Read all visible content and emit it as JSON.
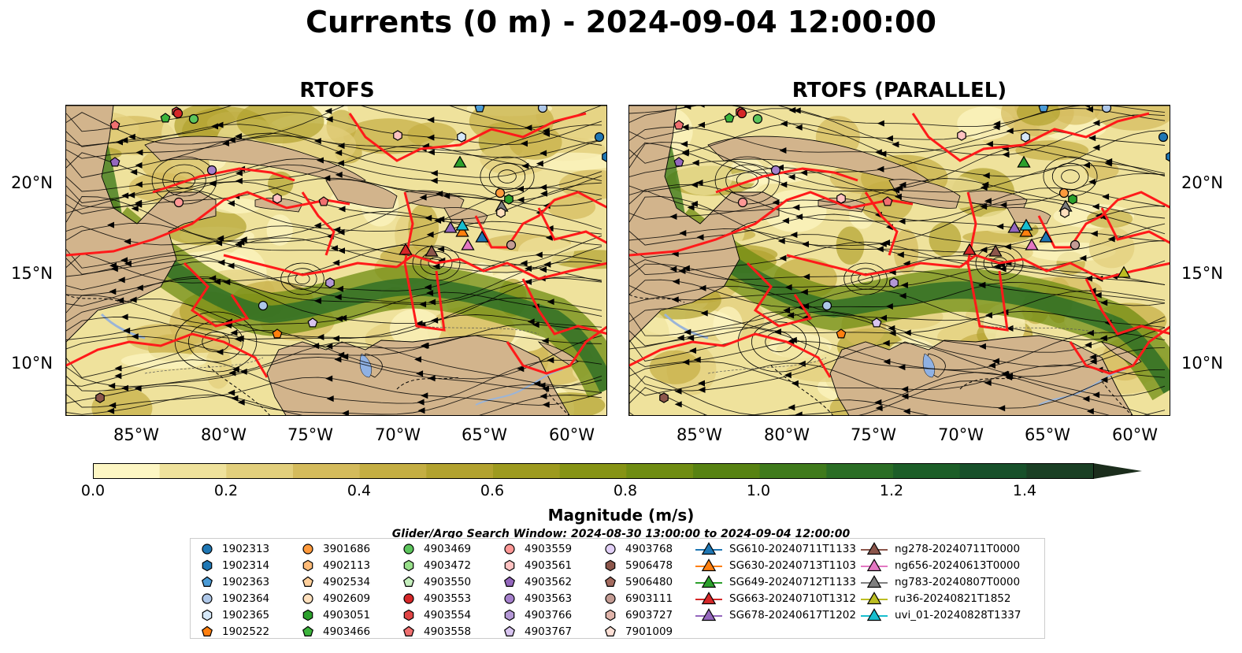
{
  "title": "Currents (0 m) - 2024-09-04 12:00:00",
  "panels": [
    {
      "title": "RTOFS"
    },
    {
      "title": "RTOFS (PARALLEL)"
    }
  ],
  "map": {
    "lat_ticks": [
      "20°N",
      "15°N",
      "10°N"
    ],
    "lon_ticks": [
      "85°W",
      "80°W",
      "75°W",
      "70°W",
      "65°W",
      "60°W"
    ],
    "extent": {
      "lon": [
        -89,
        -58
      ],
      "lat": [
        7,
        24.5
      ]
    }
  },
  "colorbar": {
    "label": "Magnitude (m/s)",
    "ticks": [
      "0.0",
      "0.2",
      "0.4",
      "0.6",
      "0.8",
      "1.0",
      "1.2",
      "1.4"
    ],
    "range": [
      0,
      1.5
    ],
    "colors": [
      "#fdf6c3",
      "#efe29c",
      "#e2cf7c",
      "#d4bb5c",
      "#c4ae43",
      "#b2a22f",
      "#9d9a1f",
      "#869315",
      "#6f8c12",
      "#578212",
      "#3f7a1c",
      "#2a6d25",
      "#1c5e28",
      "#17502a",
      "#1a3f24",
      "#1b2d1c"
    ]
  },
  "legend": {
    "title": "Glider/Argo Search Window: 2024-08-30 13:00:00 to 2024-09-04 12:00:00",
    "columns": [
      [
        {
          "label": "1902313",
          "marker": "circle",
          "color": "#1f77b4"
        },
        {
          "label": "1902314",
          "marker": "hexagon",
          "color": "#1f77b4"
        },
        {
          "label": "1902363",
          "marker": "pentagon",
          "color": "#4b9bd6"
        },
        {
          "label": "1902364",
          "marker": "circle",
          "color": "#aec7e8"
        },
        {
          "label": "1902365",
          "marker": "hexagon",
          "color": "#d6e8f8"
        },
        {
          "label": "1902522",
          "marker": "pentagon",
          "color": "#ff7f0e"
        }
      ],
      [
        {
          "label": "3901686",
          "marker": "circle",
          "color": "#ff9a3c"
        },
        {
          "label": "4902113",
          "marker": "hexagon",
          "color": "#ffbb78"
        },
        {
          "label": "4902534",
          "marker": "pentagon",
          "color": "#ffcf9a"
        },
        {
          "label": "4902609",
          "marker": "circle",
          "color": "#ffe0bd"
        },
        {
          "label": "4903051",
          "marker": "hexagon",
          "color": "#2ca02c"
        },
        {
          "label": "4903466",
          "marker": "pentagon",
          "color": "#3cb43c"
        }
      ],
      [
        {
          "label": "4903469",
          "marker": "circle",
          "color": "#5cc55c"
        },
        {
          "label": "4903472",
          "marker": "hexagon",
          "color": "#98df8a"
        },
        {
          "label": "4903550",
          "marker": "pentagon",
          "color": "#c5efbd"
        },
        {
          "label": "4903553",
          "marker": "circle",
          "color": "#d62728"
        },
        {
          "label": "4903554",
          "marker": "hexagon",
          "color": "#e04545"
        },
        {
          "label": "4903558",
          "marker": "pentagon",
          "color": "#f07070"
        }
      ],
      [
        {
          "label": "4903559",
          "marker": "circle",
          "color": "#ff9896"
        },
        {
          "label": "4903561",
          "marker": "hexagon",
          "color": "#ffc2c1"
        },
        {
          "label": "4903562",
          "marker": "pentagon",
          "color": "#9467bd"
        },
        {
          "label": "4903563",
          "marker": "circle",
          "color": "#a580cc"
        },
        {
          "label": "4903766",
          "marker": "hexagon",
          "color": "#b498d6"
        },
        {
          "label": "4903767",
          "marker": "pentagon",
          "color": "#d8c4f0"
        }
      ],
      [
        {
          "label": "4903768",
          "marker": "circle",
          "color": "#e2d0f7"
        },
        {
          "label": "5906478",
          "marker": "hexagon",
          "color": "#8c564b"
        },
        {
          "label": "5906480",
          "marker": "pentagon",
          "color": "#a46b5f"
        },
        {
          "label": "6903111",
          "marker": "circle",
          "color": "#c49c94"
        },
        {
          "label": "6903727",
          "marker": "hexagon",
          "color": "#e0b4aa"
        },
        {
          "label": "7901009",
          "marker": "pentagon",
          "color": "#fde0d6"
        }
      ],
      [
        {
          "label": "SG610-20240711T1133",
          "marker": "triangle",
          "color": "#1f77b4"
        },
        {
          "label": "SG630-20240713T1103",
          "marker": "triangle",
          "color": "#ff7f0e"
        },
        {
          "label": "SG649-20240712T1133",
          "marker": "triangle",
          "color": "#2ca02c"
        },
        {
          "label": "SG663-20240710T1312",
          "marker": "triangle",
          "color": "#d62728"
        },
        {
          "label": "SG678-20240617T1202",
          "marker": "triangle",
          "color": "#9467bd"
        }
      ],
      [
        {
          "label": "ng278-20240711T0000",
          "marker": "triangle",
          "color": "#8c564b"
        },
        {
          "label": "ng656-20240613T0000",
          "marker": "triangle",
          "color": "#e377c2"
        },
        {
          "label": "ng783-20240807T0000",
          "marker": "triangle",
          "color": "#7f7f7f"
        },
        {
          "label": "ru36-20240821T1852",
          "marker": "triangle",
          "color": "#bcbd22"
        },
        {
          "label": "uvi_01-20240828T1337",
          "marker": "triangle",
          "color": "#17becf"
        }
      ]
    ]
  }
}
